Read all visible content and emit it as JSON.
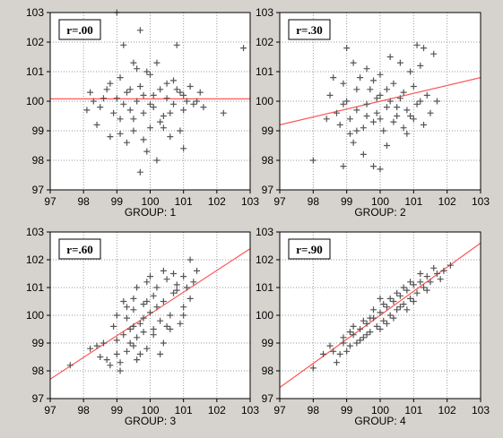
{
  "colors": {
    "background": "#d6d3ce",
    "plot_bg": "#ffffff",
    "point": "#555555",
    "fit_line": "#ff5555",
    "grid": "#9a9a9a"
  },
  "chart_data": [
    {
      "type": "scatter",
      "title": "",
      "xlabel": "GROUP: 1",
      "ylabel": "",
      "xlim": [
        97,
        103
      ],
      "ylim": [
        97,
        103
      ],
      "xticks": [
        "97",
        "98",
        "99",
        "100",
        "101",
        "102",
        "103"
      ],
      "yticks": [
        "97",
        "98",
        "99",
        "100",
        "101",
        "102",
        "103"
      ],
      "grid": true,
      "annotation": "r=.00",
      "fit_line": [
        [
          97,
          100.08
        ],
        [
          103,
          100.08
        ]
      ],
      "points": [
        [
          99.0,
          103.0
        ],
        [
          99.2,
          101.9
        ],
        [
          99.7,
          102.4
        ],
        [
          100.8,
          101.9
        ],
        [
          102.8,
          101.8
        ],
        [
          98.7,
          100.4
        ],
        [
          98.8,
          100.6
        ],
        [
          99.1,
          100.8
        ],
        [
          99.4,
          100.4
        ],
        [
          99.6,
          101.1
        ],
        [
          99.8,
          100.2
        ],
        [
          100.0,
          100.9
        ],
        [
          100.2,
          101.3
        ],
        [
          100.5,
          100.6
        ],
        [
          100.8,
          100.4
        ],
        [
          101.0,
          100.2
        ],
        [
          101.2,
          100.5
        ],
        [
          101.4,
          100.0
        ],
        [
          98.2,
          100.3
        ],
        [
          98.5,
          99.8
        ],
        [
          98.9,
          99.6
        ],
        [
          99.2,
          99.9
        ],
        [
          99.5,
          99.4
        ],
        [
          99.8,
          99.6
        ],
        [
          100.1,
          99.8
        ],
        [
          100.4,
          99.5
        ],
        [
          100.7,
          99.9
        ],
        [
          101.0,
          99.7
        ],
        [
          101.3,
          99.9
        ],
        [
          101.6,
          99.8
        ],
        [
          102.2,
          99.6
        ],
        [
          98.4,
          99.2
        ],
        [
          98.8,
          98.8
        ],
        [
          99.1,
          98.9
        ],
        [
          99.5,
          99.0
        ],
        [
          99.8,
          98.7
        ],
        [
          100.0,
          99.1
        ],
        [
          100.3,
          99.3
        ],
        [
          100.6,
          98.8
        ],
        [
          100.9,
          99.0
        ],
        [
          99.9,
          98.3
        ],
        [
          100.2,
          98.0
        ],
        [
          99.7,
          97.6
        ],
        [
          101.0,
          98.4
        ],
        [
          98.3,
          100.0
        ],
        [
          99.0,
          100.1
        ],
        [
          99.3,
          100.3
        ],
        [
          99.6,
          100.0
        ],
        [
          100.5,
          100.1
        ],
        [
          100.9,
          100.3
        ],
        [
          98.1,
          99.7
        ],
        [
          99.9,
          101.0
        ],
        [
          100.3,
          100.4
        ],
        [
          101.1,
          100.0
        ],
        [
          99.4,
          99.7
        ],
        [
          100.1,
          100.2
        ],
        [
          98.6,
          100.1
        ],
        [
          99.7,
          100.5
        ],
        [
          100.6,
          99.6
        ],
        [
          101.5,
          100.3
        ],
        [
          100.0,
          99.9
        ],
        [
          99.1,
          99.4
        ],
        [
          100.4,
          99.1
        ],
        [
          99.3,
          98.6
        ],
        [
          100.7,
          100.7
        ],
        [
          99.5,
          101.3
        ]
      ]
    },
    {
      "type": "scatter",
      "title": "",
      "xlabel": "GROUP: 2",
      "ylabel": "",
      "xlim": [
        97,
        103
      ],
      "ylim": [
        97,
        103
      ],
      "xticks": [
        "97",
        "98",
        "99",
        "100",
        "101",
        "102",
        "103"
      ],
      "yticks": [
        "97",
        "98",
        "99",
        "100",
        "101",
        "102",
        "103"
      ],
      "grid": true,
      "annotation": "r=.30",
      "fit_line": [
        [
          97,
          99.2
        ],
        [
          103,
          100.8
        ]
      ],
      "points": [
        [
          99.0,
          101.8
        ],
        [
          99.2,
          101.3
        ],
        [
          99.6,
          101.1
        ],
        [
          100.0,
          100.9
        ],
        [
          100.3,
          101.5
        ],
        [
          100.6,
          101.3
        ],
        [
          100.9,
          101.0
        ],
        [
          101.1,
          101.9
        ],
        [
          101.3,
          101.8
        ],
        [
          101.6,
          101.6
        ],
        [
          98.9,
          100.6
        ],
        [
          99.3,
          100.4
        ],
        [
          99.7,
          100.4
        ],
        [
          100.0,
          100.2
        ],
        [
          100.4,
          100.6
        ],
        [
          100.7,
          100.3
        ],
        [
          101.0,
          100.5
        ],
        [
          101.4,
          100.2
        ],
        [
          98.5,
          100.2
        ],
        [
          98.9,
          99.9
        ],
        [
          99.3,
          99.7
        ],
        [
          99.6,
          99.9
        ],
        [
          99.9,
          99.6
        ],
        [
          100.2,
          99.8
        ],
        [
          100.5,
          99.5
        ],
        [
          100.8,
          99.7
        ],
        [
          101.1,
          99.9
        ],
        [
          101.5,
          99.6
        ],
        [
          98.4,
          99.4
        ],
        [
          98.8,
          99.2
        ],
        [
          99.1,
          99.4
        ],
        [
          99.5,
          99.1
        ],
        [
          99.8,
          99.3
        ],
        [
          100.1,
          99.0
        ],
        [
          100.4,
          99.3
        ],
        [
          100.7,
          99.1
        ],
        [
          101.0,
          99.4
        ],
        [
          101.3,
          99.2
        ],
        [
          98.0,
          98.0
        ],
        [
          98.9,
          97.8
        ],
        [
          99.5,
          98.2
        ],
        [
          99.8,
          97.8
        ],
        [
          100.0,
          97.7
        ],
        [
          99.2,
          98.6
        ],
        [
          100.2,
          98.5
        ],
        [
          99.4,
          100.8
        ],
        [
          100.6,
          100.1
        ],
        [
          99.0,
          100.0
        ],
        [
          100.3,
          100.0
        ],
        [
          101.2,
          100.0
        ],
        [
          98.7,
          99.6
        ],
        [
          100.9,
          99.5
        ],
        [
          99.8,
          100.7
        ],
        [
          100.5,
          99.8
        ],
        [
          101.7,
          100.0
        ],
        [
          99.6,
          99.5
        ],
        [
          100.2,
          100.4
        ],
        [
          99.1,
          98.9
        ],
        [
          100.8,
          98.9
        ],
        [
          98.6,
          100.8
        ],
        [
          101.2,
          101.2
        ],
        [
          99.3,
          99.0
        ],
        [
          100.0,
          99.4
        ],
        [
          99.9,
          100.1
        ]
      ]
    },
    {
      "type": "scatter",
      "title": "",
      "xlabel": "GROUP: 3",
      "ylabel": "",
      "xlim": [
        97,
        103
      ],
      "ylim": [
        97,
        103
      ],
      "xticks": [
        "97",
        "98",
        "99",
        "100",
        "101",
        "102",
        "103"
      ],
      "yticks": [
        "97",
        "98",
        "99",
        "100",
        "101",
        "102",
        "103"
      ],
      "grid": true,
      "annotation": "r=.60",
      "fit_line": [
        [
          97,
          97.7
        ],
        [
          103,
          102.4
        ]
      ],
      "points": [
        [
          97.6,
          98.2
        ],
        [
          98.2,
          98.8
        ],
        [
          98.5,
          98.5
        ],
        [
          98.8,
          98.2
        ],
        [
          99.0,
          98.6
        ],
        [
          99.1,
          98.3
        ],
        [
          98.6,
          99.0
        ],
        [
          99.0,
          99.1
        ],
        [
          99.3,
          98.7
        ],
        [
          99.5,
          98.9
        ],
        [
          99.7,
          98.6
        ],
        [
          99.9,
          98.8
        ],
        [
          98.9,
          99.6
        ],
        [
          99.2,
          99.3
        ],
        [
          99.4,
          99.5
        ],
        [
          99.6,
          99.2
        ],
        [
          99.8,
          99.4
        ],
        [
          100.1,
          99.3
        ],
        [
          100.4,
          99.0
        ],
        [
          99.0,
          100.0
        ],
        [
          99.3,
          99.9
        ],
        [
          99.5,
          100.2
        ],
        [
          99.8,
          99.9
        ],
        [
          100.0,
          100.1
        ],
        [
          100.3,
          99.8
        ],
        [
          100.6,
          99.5
        ],
        [
          100.9,
          99.7
        ],
        [
          99.2,
          100.5
        ],
        [
          99.5,
          100.6
        ],
        [
          99.8,
          100.4
        ],
        [
          100.1,
          100.7
        ],
        [
          100.4,
          100.5
        ],
        [
          100.7,
          100.8
        ],
        [
          101.0,
          100.3
        ],
        [
          101.2,
          100.6
        ],
        [
          99.6,
          101.0
        ],
        [
          99.9,
          101.2
        ],
        [
          100.2,
          101.0
        ],
        [
          100.5,
          101.3
        ],
        [
          100.8,
          101.1
        ],
        [
          101.0,
          101.4
        ],
        [
          100.0,
          101.4
        ],
        [
          100.7,
          101.5
        ],
        [
          101.2,
          102.0
        ],
        [
          101.4,
          101.6
        ],
        [
          100.3,
          98.6
        ],
        [
          101.0,
          100.0
        ],
        [
          100.6,
          100.0
        ],
        [
          99.1,
          98.0
        ],
        [
          98.4,
          98.9
        ],
        [
          99.7,
          99.7
        ],
        [
          100.2,
          100.3
        ],
        [
          99.4,
          99.0
        ],
        [
          100.5,
          99.6
        ],
        [
          99.9,
          100.5
        ],
        [
          101.3,
          101.2
        ],
        [
          99.3,
          100.3
        ],
        [
          100.8,
          100.9
        ],
        [
          100.1,
          99.5
        ],
        [
          98.7,
          98.4
        ],
        [
          99.6,
          98.4
        ],
        [
          100.4,
          101.6
        ],
        [
          101.1,
          101.0
        ],
        [
          99.5,
          99.6
        ]
      ]
    },
    {
      "type": "scatter",
      "title": "",
      "xlabel": "GROUP: 4",
      "ylabel": "",
      "xlim": [
        97,
        103
      ],
      "ylim": [
        97,
        103
      ],
      "xticks": [
        "97",
        "98",
        "99",
        "100",
        "101",
        "102",
        "103"
      ],
      "yticks": [
        "97",
        "98",
        "99",
        "100",
        "101",
        "102",
        "103"
      ],
      "grid": true,
      "annotation": "r=.90",
      "fit_line": [
        [
          97,
          97.4
        ],
        [
          103,
          102.6
        ]
      ],
      "points": [
        [
          98.0,
          98.1
        ],
        [
          98.3,
          98.6
        ],
        [
          98.6,
          98.7
        ],
        [
          98.9,
          99.0
        ],
        [
          98.9,
          99.2
        ],
        [
          99.1,
          98.9
        ],
        [
          99.2,
          99.3
        ],
        [
          99.4,
          99.5
        ],
        [
          99.3,
          99.0
        ],
        [
          99.5,
          99.2
        ],
        [
          99.6,
          99.7
        ],
        [
          99.7,
          99.4
        ],
        [
          99.8,
          99.9
        ],
        [
          99.9,
          99.6
        ],
        [
          100.0,
          100.1
        ],
        [
          100.1,
          99.8
        ],
        [
          100.2,
          100.3
        ],
        [
          100.3,
          100.0
        ],
        [
          100.4,
          100.5
        ],
        [
          100.5,
          100.2
        ],
        [
          100.6,
          100.7
        ],
        [
          100.7,
          100.4
        ],
        [
          100.8,
          100.9
        ],
        [
          100.9,
          100.6
        ],
        [
          101.0,
          101.1
        ],
        [
          101.1,
          100.8
        ],
        [
          101.2,
          101.2
        ],
        [
          101.3,
          101.0
        ],
        [
          101.4,
          101.4
        ],
        [
          101.5,
          101.2
        ],
        [
          101.7,
          101.5
        ],
        [
          101.9,
          101.6
        ],
        [
          102.1,
          101.8
        ],
        [
          99.0,
          98.7
        ],
        [
          99.5,
          99.8
        ],
        [
          100.0,
          99.5
        ],
        [
          100.5,
          100.8
        ],
        [
          101.0,
          100.5
        ],
        [
          98.7,
          98.3
        ],
        [
          99.8,
          100.2
        ],
        [
          100.3,
          100.6
        ],
        [
          100.8,
          100.2
        ],
        [
          101.6,
          101.7
        ],
        [
          99.2,
          99.6
        ],
        [
          100.6,
          100.3
        ],
        [
          99.4,
          99.1
        ],
        [
          100.1,
          100.4
        ],
        [
          101.2,
          101.5
        ],
        [
          98.5,
          98.9
        ],
        [
          100.9,
          101.2
        ],
        [
          99.7,
          99.9
        ],
        [
          100.4,
          99.9
        ],
        [
          101.4,
          100.9
        ],
        [
          99.1,
          99.4
        ],
        [
          100.2,
          99.7
        ],
        [
          100.7,
          101.0
        ],
        [
          99.6,
          99.3
        ],
        [
          101.8,
          101.3
        ],
        [
          98.8,
          98.6
        ],
        [
          100.0,
          100.6
        ]
      ]
    }
  ]
}
